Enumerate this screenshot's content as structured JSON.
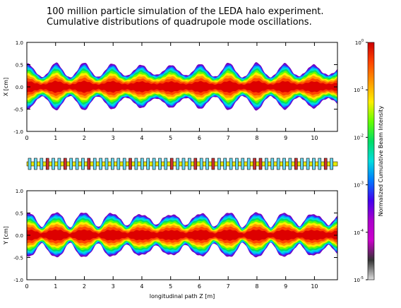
{
  "title_line1": "100 million particle simulation of the LEDA halo experiment.",
  "title_line2": "Cumulative distributions of quadrupole mode oscillations.",
  "chart_data": [
    {
      "type": "heatmap",
      "panel": "top",
      "ylabel": "X [cm]",
      "xlim": [
        0,
        10.8
      ],
      "ylim": [
        -1.0,
        1.0
      ],
      "x_ticks": [
        "0",
        "1",
        "2",
        "3",
        "4",
        "5",
        "6",
        "7",
        "8",
        "9",
        "10"
      ],
      "y_ticks": [
        "-1.0",
        "-0.5",
        "0.0",
        "0.5",
        "1.0"
      ],
      "phase_deg": 0
    },
    {
      "type": "heatmap",
      "panel": "bottom",
      "ylabel": "Y [cm]",
      "xlabel": "longitudinal path Z [m]",
      "xlim": [
        0,
        10.8
      ],
      "ylim": [
        -1.0,
        1.0
      ],
      "x_ticks": [
        "0",
        "1",
        "2",
        "3",
        "4",
        "5",
        "6",
        "7",
        "8",
        "9",
        "10"
      ],
      "y_ticks": [
        "-1.0",
        "-0.5",
        "0.0",
        "0.5",
        "1.0"
      ],
      "phase_deg": 180
    }
  ],
  "lattice": {
    "element_count": 52,
    "colors": {
      "rail": "#e8e800",
      "quad": "#66d8ee",
      "accent": "#cc3333"
    }
  },
  "colorbar": {
    "label": "Normalized Cumulative Beam Intensity",
    "scale": "log",
    "ticks": [
      {
        "mant": "10",
        "exp": "0"
      },
      {
        "mant": "10",
        "exp": "-1"
      },
      {
        "mant": "10",
        "exp": "-2"
      },
      {
        "mant": "10",
        "exp": "-3"
      },
      {
        "mant": "10",
        "exp": "-4"
      },
      {
        "mant": "10",
        "exp": "-5"
      }
    ],
    "stops": [
      "#cc0000",
      "#ff4400",
      "#ff9900",
      "#ffee00",
      "#66ff00",
      "#00dd66",
      "#00dddd",
      "#0077ff",
      "#4400ee",
      "#aa00cc",
      "#cc00cc",
      "#333333",
      "#dddddd"
    ]
  }
}
